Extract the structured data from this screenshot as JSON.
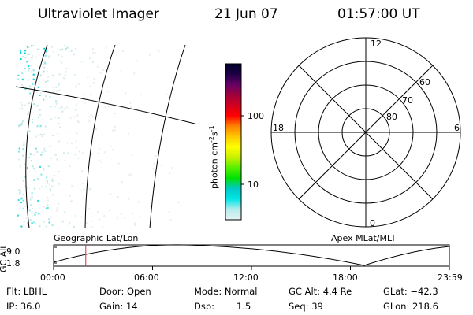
{
  "header": {
    "instrument": "Ultraviolet Imager",
    "date": "21 Jun 07",
    "time": "01:57:00 UT"
  },
  "colorbar": {
    "unit_prefix": "photon cm",
    "unit_exp1": "-2",
    "unit_mid": "s",
    "unit_exp2": "-1",
    "ticks": [
      "100",
      "10"
    ],
    "scale": "log",
    "stops": [
      "#e6f2f2",
      "#b4ebeb",
      "#00e6e6",
      "#00c8c8",
      "#00e100",
      "#55f000",
      "#c8f000",
      "#ffff00",
      "#ffc800",
      "#ff8200",
      "#ff0000",
      "#d2001e",
      "#a0003c",
      "#640064",
      "#1e0046",
      "#000028"
    ]
  },
  "polar": {
    "mlt_labels": {
      "top": "12",
      "left": "18",
      "right": "6",
      "bottom": "0"
    },
    "lat_labels": [
      "60",
      "70",
      "80"
    ]
  },
  "timeline": {
    "left_label": "Geographic Lat/Lon",
    "right_label": "Apex MLat/MLT",
    "axis_title": "GC Alt",
    "y_ticks": [
      "9.0",
      "1.8"
    ],
    "x_ticks": [
      "00:00",
      "06:00",
      "12:00",
      "18:00",
      "23:59"
    ],
    "current_time_hours": 1.95,
    "marker_color": "#e03030"
  },
  "info": {
    "flt": "Flt: LBHL",
    "door": "Door: Open",
    "mode": "Mode: Normal",
    "gc_alt": "GC Alt: 4.4 Re",
    "glat": "GLat: −42.3",
    "ip": "IP: 36.0",
    "gain": "Gain: 14",
    "dsp_label": "Dsp:",
    "dsp_value": "1.5",
    "seq": "Seq: 39",
    "glon": "GLon: 218.6"
  }
}
